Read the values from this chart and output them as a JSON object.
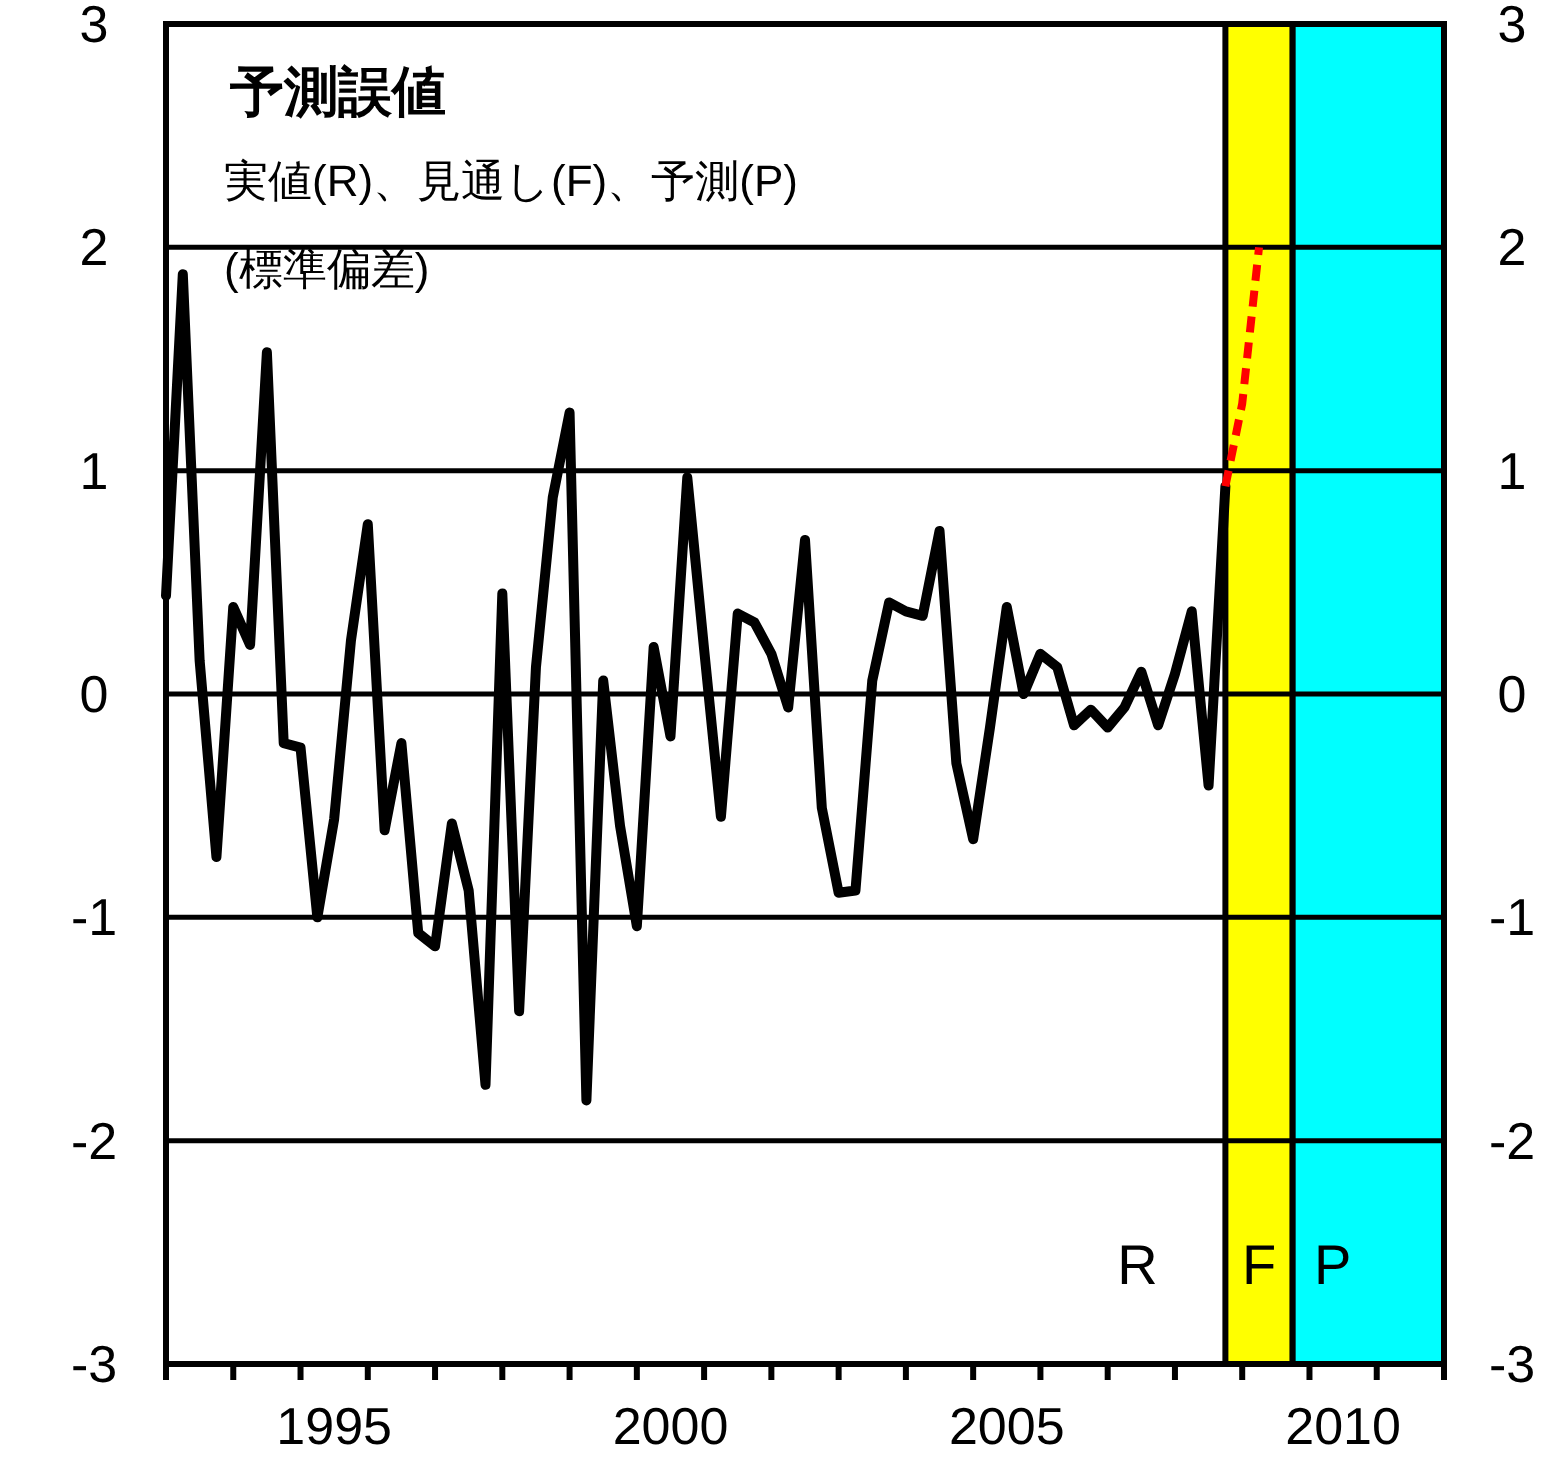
{
  "chart_data": {
    "type": "line",
    "title": "予測誤値",
    "subtitle": "実値(R)、見通し(F)、予測(P)",
    "annotations": [
      "(標準偏差)",
      "R"
    ],
    "xlim": [
      1993,
      2012
    ],
    "ylim": [
      -3,
      3
    ],
    "yticks": [
      -3,
      -2,
      -1,
      0,
      1,
      2,
      3
    ],
    "y2lim": [
      -3,
      3
    ],
    "y2ticks": [
      -3,
      -2,
      -1,
      0,
      1,
      2,
      3
    ],
    "xticks": [
      {
        "value": 1993,
        "label": null
      },
      {
        "value": 1994,
        "label": null
      },
      {
        "value": 1995,
        "label": null
      },
      {
        "value": 1995.5,
        "label": "1995"
      },
      {
        "value": 1996,
        "label": null
      },
      {
        "value": 1997,
        "label": null
      },
      {
        "value": 1998,
        "label": null
      },
      {
        "value": 1999,
        "label": null
      },
      {
        "value": 2000,
        "label": null
      },
      {
        "value": 2000.5,
        "label": "2000"
      },
      {
        "value": 2001,
        "label": null
      },
      {
        "value": 2002,
        "label": null
      },
      {
        "value": 2003,
        "label": null
      },
      {
        "value": 2004,
        "label": null
      },
      {
        "value": 2005,
        "label": null
      },
      {
        "value": 2005.5,
        "label": "2005"
      },
      {
        "value": 2006,
        "label": null
      },
      {
        "value": 2007,
        "label": null
      },
      {
        "value": 2008,
        "label": null
      },
      {
        "value": 2009,
        "label": null
      },
      {
        "value": 2010,
        "label": null
      },
      {
        "value": 2010.5,
        "label": "2010"
      },
      {
        "value": 2011,
        "label": null
      },
      {
        "value": 2012,
        "label": null
      }
    ],
    "grid": "y",
    "marker": "none",
    "bands": [
      {
        "axis": "x",
        "from": 2008.75,
        "to": 2009.75,
        "label": "F",
        "color": "#ffff00"
      },
      {
        "axis": "x",
        "from": 2009.75,
        "to": 2012,
        "label": "P",
        "color": "#00ffff"
      }
    ],
    "series": [
      {
        "color": "#000000",
        "line_style": "solid",
        "x": [
          1993,
          1993.25,
          1993.5,
          1993.75,
          1994,
          1994.25,
          1994.5,
          1994.75,
          1995,
          1995.25,
          1995.5,
          1995.75,
          1996,
          1996.25,
          1996.5,
          1996.75,
          1997,
          1997.25,
          1997.5,
          1997.75,
          1998,
          1998.25,
          1998.5,
          1998.75,
          1999,
          1999.25,
          1999.5,
          1999.75,
          2000,
          2000.25,
          2000.5,
          2000.75,
          2001,
          2001.25,
          2001.5,
          2001.75,
          2002,
          2002.25,
          2002.5,
          2002.75,
          2003,
          2003.25,
          2003.5,
          2003.75,
          2004,
          2004.25,
          2004.5,
          2004.75,
          2005,
          2005.25,
          2005.5,
          2005.75,
          2006,
          2006.25,
          2006.5,
          2006.75,
          2007,
          2007.25,
          2007.5,
          2007.75,
          2008,
          2008.25,
          2008.5,
          2008.75
        ],
        "values": [
          0.44,
          1.88,
          0.15,
          -0.73,
          0.39,
          0.22,
          1.53,
          -0.22,
          -0.24,
          -1.0,
          -0.56,
          0.24,
          0.76,
          -0.61,
          -0.22,
          -1.07,
          -1.13,
          -0.58,
          -0.88,
          -1.75,
          0.45,
          -1.42,
          0.12,
          0.88,
          1.26,
          -1.82,
          0.06,
          -0.59,
          -1.04,
          0.21,
          -0.19,
          0.97,
          0.2,
          -0.55,
          0.36,
          0.32,
          0.18,
          -0.06,
          0.69,
          -0.51,
          -0.89,
          -0.88,
          0.06,
          0.41,
          0.37,
          0.35,
          0.73,
          -0.31,
          -0.65,
          -0.15,
          0.39,
          0.0,
          0.18,
          0.12,
          -0.14,
          -0.07,
          -0.15,
          -0.06,
          0.1,
          -0.14,
          0.09,
          0.37,
          -0.41,
          0.93
        ]
      },
      {
        "color": "#ff0000",
        "line_style": "dashed",
        "x": [
          2008.75,
          2009.0,
          2009.25
        ],
        "values": [
          0.93,
          1.3,
          2.0
        ]
      }
    ]
  }
}
